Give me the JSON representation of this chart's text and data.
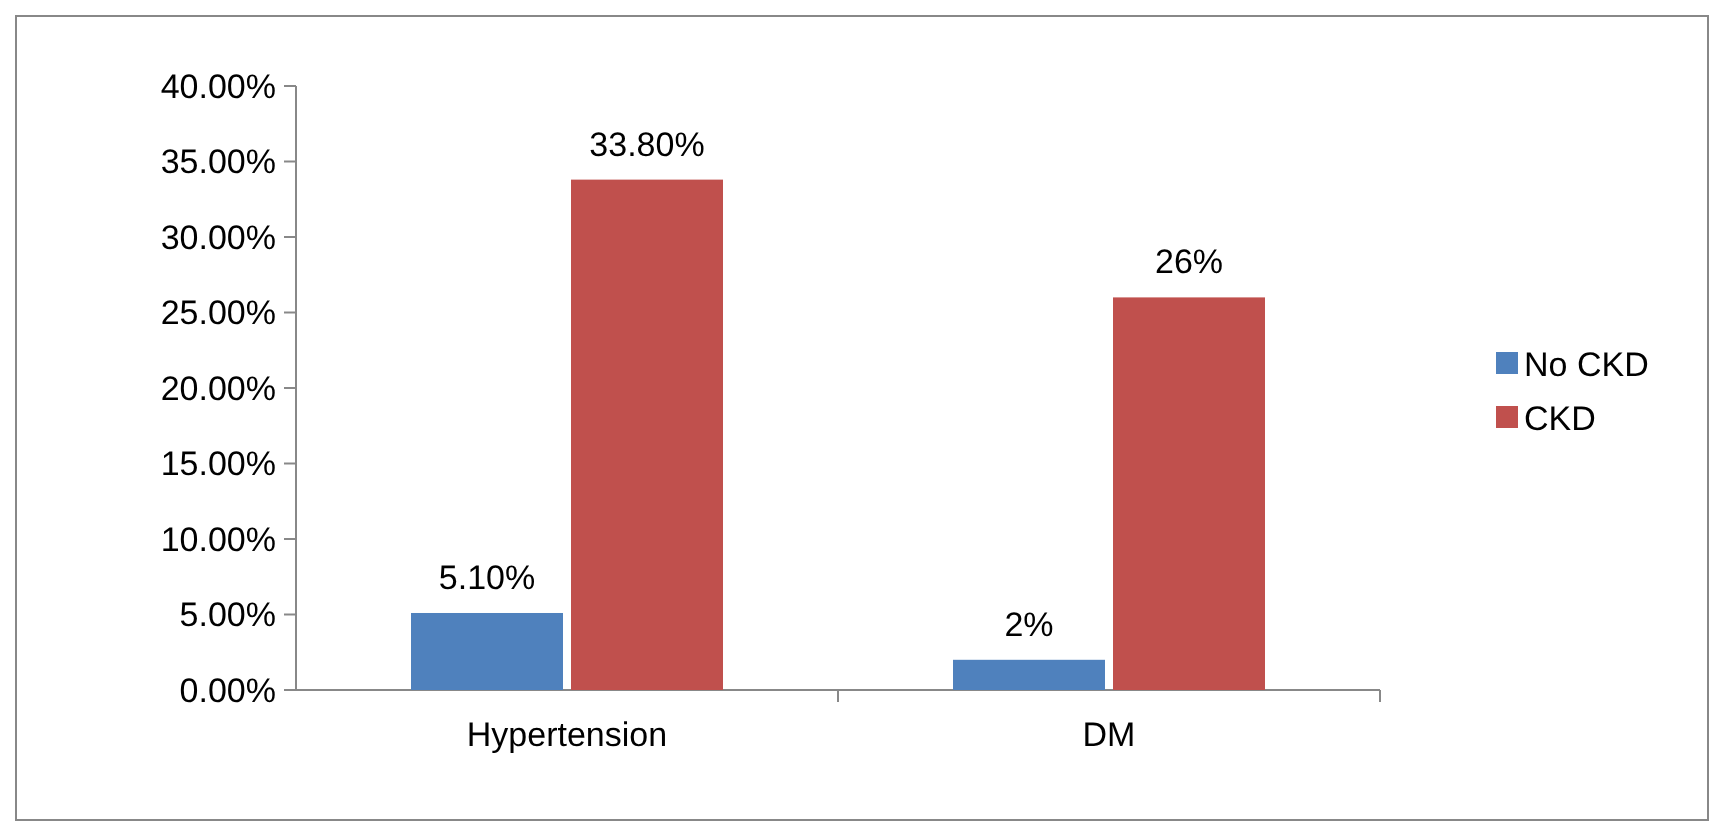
{
  "chart_data": {
    "type": "bar",
    "categories": [
      "Hypertension",
      "DM"
    ],
    "series": [
      {
        "name": "No CKD",
        "color": "#4f81bd",
        "values": [
          5.1,
          2
        ],
        "value_labels": [
          "5.10%",
          "2%"
        ]
      },
      {
        "name": "CKD",
        "color": "#c0504d",
        "values": [
          33.8,
          26
        ],
        "value_labels": [
          "33.80%",
          "26%"
        ]
      }
    ],
    "ylim": [
      0,
      40
    ],
    "yticks": [
      {
        "value": 0,
        "label": "0.00%"
      },
      {
        "value": 5,
        "label": "5.00%"
      },
      {
        "value": 10,
        "label": "10.00%"
      },
      {
        "value": 15,
        "label": "15.00%"
      },
      {
        "value": 20,
        "label": "20.00%"
      },
      {
        "value": 25,
        "label": "25.00%"
      },
      {
        "value": 30,
        "label": "30.00%"
      },
      {
        "value": 35,
        "label": "35.00%"
      },
      {
        "value": 40,
        "label": "40.00%"
      }
    ],
    "legend": "right",
    "grid": false
  }
}
